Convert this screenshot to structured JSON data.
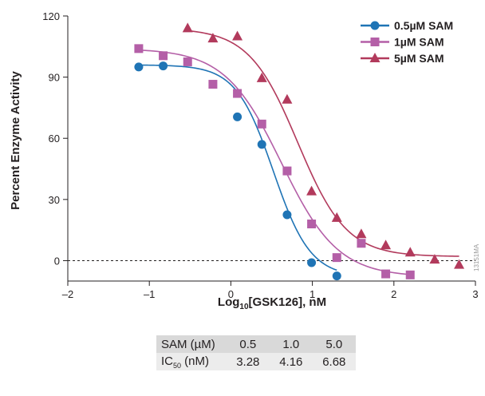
{
  "chart_data": {
    "type": "scatter",
    "title": "",
    "xlabel_main": "Log",
    "xlabel_sub": "10",
    "xlabel_rest": "[GSK126], nM",
    "ylabel": "Percent Enzyme Activity",
    "xlim": [
      -2,
      3
    ],
    "ylim": [
      -10,
      120
    ],
    "xticks": [
      -2,
      -1,
      0,
      1,
      2,
      3
    ],
    "xtick_labels": [
      "–2",
      "–1",
      "0",
      "1",
      "2",
      "3"
    ],
    "yticks": [
      0,
      30,
      60,
      90,
      120
    ],
    "ytick_labels": [
      "0",
      "30",
      "60",
      "90",
      "120"
    ],
    "reference_line_y": 0,
    "legend_position": "top-right",
    "series": [
      {
        "name": "0.5µM SAM",
        "color": "#1f74b5",
        "marker": "circle",
        "ic50_log": 0.52,
        "top": 96,
        "bottom": -8,
        "hill": 1.9,
        "x": [
          -1.13,
          -0.83,
          0.08,
          0.38,
          0.69,
          0.99,
          1.3
        ],
        "y": [
          95,
          95.5,
          70.5,
          57,
          22.5,
          -1,
          -7.5
        ]
      },
      {
        "name": "1µM SAM",
        "color": "#b45fa7",
        "marker": "square",
        "ic50_log": 0.62,
        "top": 104,
        "bottom": -8,
        "hill": 1.25,
        "x": [
          -1.13,
          -0.83,
          -0.53,
          -0.22,
          0.08,
          0.38,
          0.69,
          0.99,
          1.3,
          1.6,
          1.9,
          2.2
        ],
        "y": [
          104,
          100.5,
          97.5,
          86.5,
          82,
          67,
          44,
          18,
          1.5,
          8.5,
          -6.5,
          -7
        ]
      },
      {
        "name": "5µM SAM",
        "color": "#b23a5c",
        "marker": "triangle",
        "ic50_log": 0.82,
        "top": 114,
        "bottom": 2,
        "hill": 1.45,
        "x": [
          -0.53,
          -0.22,
          0.08,
          0.38,
          0.69,
          0.99,
          1.3,
          1.6,
          1.9,
          2.2,
          2.5,
          2.8
        ],
        "y": [
          114,
          109,
          110,
          89.5,
          79,
          34,
          21,
          13,
          7.5,
          4,
          0.5,
          -2
        ]
      }
    ]
  },
  "side_code": "13151MA",
  "table": {
    "header_label": "SAM (µM)",
    "header_values": [
      "0.5",
      "1.0",
      "5.0"
    ],
    "row_label_main": "IC",
    "row_label_sub": "50",
    "row_label_rest": " (nM)",
    "row_values": [
      "3.28",
      "4.16",
      "6.68"
    ]
  }
}
